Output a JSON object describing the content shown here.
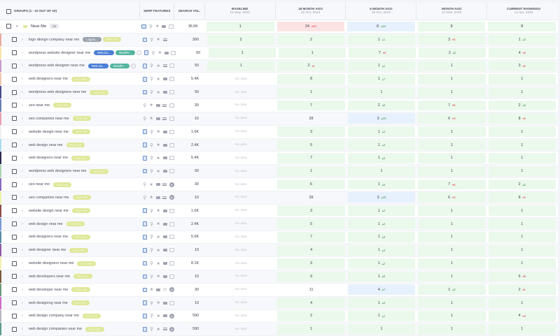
{
  "header": {
    "groups_label": "GROUPS (1 - 10 OUT OF 10)",
    "serp_label": "SERP FEATURES",
    "vol_label": "SEARCH VOL.",
    "columns": [
      {
        "label": "BASELINE",
        "date": "15 May, 2022"
      },
      {
        "label": "18 MONTH AGO",
        "date": "22 Oct, 2023"
      },
      {
        "label": "6 MONTH AGO",
        "date": "16 Oct, 2024"
      },
      {
        "label": "MONTH AGO",
        "date": "15 Mar, 2025"
      },
      {
        "label": "CURRENT RANKINGS",
        "date": "14 Apr, 2025"
      }
    ]
  },
  "group": {
    "name": "Near Me",
    "count": "46",
    "volume": "36.5K",
    "ranks": [
      {
        "v": "1",
        "c": "green"
      },
      {
        "v": "24",
        "d": "23",
        "dir": "dn",
        "c": "red"
      },
      {
        "v": "8",
        "d": "16",
        "dir": "up",
        "c": "blue"
      },
      {
        "v": "8",
        "c": "green"
      },
      {
        "v": "8",
        "c": "green"
      }
    ]
  },
  "rows": [
    {
      "kw": "logo design company near me",
      "bar": "#e8a9a0",
      "tags": [
        "Logos/...",
        "Near Me"
      ],
      "more": false,
      "serp": [
        "img",
        "pin",
        "star",
        "list"
      ],
      "vol": "390",
      "ranks": [
        {
          "v": "2",
          "c": "green"
        },
        {
          "v": "2",
          "c": "green"
        },
        {
          "v": "1",
          "d": "1",
          "dir": "up",
          "c": "green"
        },
        {
          "v": "3",
          "d": "2",
          "dir": "dn",
          "c": "green"
        },
        {
          "v": "1",
          "d": "2",
          "dir": "up",
          "c": "green"
        }
      ]
    },
    {
      "kw": "wordpress website designer near me",
      "bar": "#f5e6a8",
      "tags": [
        "Web De...",
        "WordPr..."
      ],
      "more": true,
      "serp": [
        "img",
        "pin",
        "star",
        "video",
        "dots"
      ],
      "vol": "50",
      "ranks": [
        {
          "v": "1",
          "c": "green"
        },
        {
          "v": "1",
          "c": "green"
        },
        {
          "v": "7",
          "d": "6",
          "dir": "dn",
          "c": "green"
        },
        {
          "v": "2",
          "d": "5",
          "dir": "up",
          "c": "green"
        },
        {
          "v": "4",
          "d": "2",
          "dir": "dn",
          "c": "green"
        }
      ]
    },
    {
      "kw": "wordpress web designer near me",
      "bar": "#c79bc7",
      "tags": [
        "Web De...",
        "WordPr..."
      ],
      "more": true,
      "serp": [
        "img",
        "pin",
        "star",
        "list",
        "dots"
      ],
      "vol": "50",
      "ranks": [
        {
          "v": "1",
          "c": "green"
        },
        {
          "v": "2",
          "d": "1",
          "dir": "dn",
          "c": "green"
        },
        {
          "v": "1",
          "d": "1",
          "dir": "up",
          "c": "green"
        },
        {
          "v": "1",
          "c": "green"
        },
        {
          "v": "3",
          "d": "2",
          "dir": "dn",
          "c": "green"
        }
      ]
    },
    {
      "kw": "web designers near me",
      "bar": "#f2c7b0",
      "tags": [
        "Near Me"
      ],
      "more": false,
      "serp": [
        "img",
        "pin",
        "star",
        "video",
        "dots"
      ],
      "vol": "5.4K",
      "ranks": [
        {
          "v": "No data",
          "c": "none"
        },
        {
          "v": "8",
          "c": "green"
        },
        {
          "v": "1",
          "d": "7",
          "dir": "up",
          "c": "green"
        },
        {
          "v": "1",
          "c": "green"
        },
        {
          "v": "1",
          "c": "green"
        }
      ]
    },
    {
      "kw": "wordpress web designers near me",
      "bar": "#4b4a8c",
      "tags": [
        "Near Me"
      ],
      "more": false,
      "serp": [
        "img",
        "pin",
        "star",
        "video",
        "dots"
      ],
      "vol": "50",
      "ranks": [
        {
          "v": "No data",
          "c": "none"
        },
        {
          "v": "1",
          "c": "green"
        },
        {
          "v": "1",
          "c": "green"
        },
        {
          "v": "1",
          "c": "green"
        },
        {
          "v": "1",
          "c": "green"
        }
      ]
    },
    {
      "kw": "seo near me",
      "bar": "#6a7fb5",
      "tags": [
        "Near Me"
      ],
      "more": false,
      "serp": [
        "pin",
        "star",
        "video",
        "list",
        "dots"
      ],
      "vol": "30",
      "ranks": [
        {
          "v": "No data",
          "c": "none"
        },
        {
          "v": "7",
          "c": "green"
        },
        {
          "v": "2",
          "d": "5",
          "dir": "up",
          "c": "green"
        },
        {
          "v": "7",
          "d": "5",
          "dir": "dn",
          "c": "green"
        },
        {
          "v": "2",
          "d": "5",
          "dir": "up",
          "c": "green"
        }
      ]
    },
    {
      "kw": "seo companies near me",
      "bar": "#e8a0b4",
      "tags": [
        "Near Me"
      ],
      "more": false,
      "serp": [
        "pin",
        "star",
        "video",
        "list",
        "dots"
      ],
      "vol": "10",
      "ranks": [
        {
          "v": "No data",
          "c": "none"
        },
        {
          "v": "28",
          "c": "plain"
        },
        {
          "v": "3",
          "d": "25",
          "dir": "up",
          "c": "blue"
        },
        {
          "v": "6",
          "d": "3",
          "dir": "dn",
          "c": "green"
        },
        {
          "v": "8",
          "d": "2",
          "dir": "dn",
          "c": "green"
        }
      ]
    },
    {
      "kw": "website design near me",
      "bar": "#f0f0f0",
      "tags": [
        "Near Me"
      ],
      "more": false,
      "serp": [
        "img",
        "pin",
        "star",
        "video",
        "dots"
      ],
      "vol": "1.6K",
      "ranks": [
        {
          "v": "No data",
          "c": "none"
        },
        {
          "v": "3",
          "c": "green"
        },
        {
          "v": "1",
          "d": "2",
          "dir": "up",
          "c": "green"
        },
        {
          "v": "1",
          "c": "green"
        },
        {
          "v": "1",
          "c": "green"
        }
      ]
    },
    {
      "kw": "web design near me",
      "bar": "#a9dcef",
      "tags": [
        "Near Me"
      ],
      "more": false,
      "serp": [
        "img",
        "pin",
        "star",
        "video",
        "dots"
      ],
      "vol": "2.4K",
      "ranks": [
        {
          "v": "No data",
          "c": "none"
        },
        {
          "v": "5",
          "c": "green"
        },
        {
          "v": "1",
          "d": "4",
          "dir": "up",
          "c": "green"
        },
        {
          "v": "1",
          "c": "green"
        },
        {
          "v": "1",
          "c": "green"
        }
      ]
    },
    {
      "kw": "web designers near me",
      "bar": "#2e2c4e",
      "tags": [
        "Near Me"
      ],
      "more": false,
      "serp": [
        "img",
        "pin",
        "star",
        "video",
        "dots"
      ],
      "vol": "5.4K",
      "ranks": [
        {
          "v": "No data",
          "c": "none"
        },
        {
          "v": "7",
          "c": "green"
        },
        {
          "v": "1",
          "d": "6",
          "dir": "up",
          "c": "green"
        },
        {
          "v": "1",
          "c": "green"
        },
        {
          "v": "1",
          "c": "green"
        }
      ]
    },
    {
      "kw": "wordpress web designers near me",
      "bar": "#a8d4b0",
      "tags": [
        "Near Me"
      ],
      "more": false,
      "serp": [
        "img",
        "pin",
        "star",
        "video",
        "dots"
      ],
      "vol": "50",
      "ranks": [
        {
          "v": "No data",
          "c": "none"
        },
        {
          "v": "1",
          "c": "green"
        },
        {
          "v": "1",
          "c": "green"
        },
        {
          "v": "1",
          "c": "green"
        },
        {
          "v": "1",
          "c": "green"
        }
      ]
    },
    {
      "kw": "seo near me",
      "bar": "#8a6ac0",
      "tags": [
        "Near Me"
      ],
      "more": false,
      "serp": [
        "pin",
        "star",
        "video",
        "list",
        "circ"
      ],
      "vol": "30",
      "ranks": [
        {
          "v": "No data",
          "c": "none"
        },
        {
          "v": "6",
          "c": "green"
        },
        {
          "v": "1",
          "d": "5",
          "dir": "up",
          "c": "green"
        },
        {
          "v": "7",
          "d": "6",
          "dir": "dn",
          "c": "green"
        },
        {
          "v": "2",
          "d": "5",
          "dir": "up",
          "c": "green"
        }
      ]
    },
    {
      "kw": "seo companies near me",
      "bar": "#eaf2a8",
      "tags": [
        "Near Me"
      ],
      "more": false,
      "serp": [
        "pin",
        "star",
        "video",
        "list",
        "circ"
      ],
      "vol": "10",
      "ranks": [
        {
          "v": "No data",
          "c": "none"
        },
        {
          "v": "28",
          "c": "plain"
        },
        {
          "v": "3",
          "d": "25",
          "dir": "up",
          "c": "blue"
        },
        {
          "v": "6",
          "d": "3",
          "dir": "dn",
          "c": "green"
        },
        {
          "v": "8",
          "d": "2",
          "dir": "dn",
          "c": "green"
        }
      ]
    },
    {
      "kw": "website design near me",
      "bar": "#8a4a48",
      "tags": [
        "Near Me"
      ],
      "more": false,
      "serp": [
        "img",
        "pin",
        "star",
        "video",
        "dots"
      ],
      "vol": "1.6K",
      "ranks": [
        {
          "v": "No data",
          "c": "none"
        },
        {
          "v": "3",
          "c": "green"
        },
        {
          "v": "1",
          "d": "2",
          "dir": "up",
          "c": "green"
        },
        {
          "v": "1",
          "c": "green"
        },
        {
          "v": "1",
          "c": "green"
        }
      ]
    },
    {
      "kw": "web design near me",
      "bar": "#7a9ad6",
      "tags": [
        "Near Me"
      ],
      "more": false,
      "serp": [
        "img",
        "pin",
        "star",
        "video",
        "dots"
      ],
      "vol": "2.4K",
      "ranks": [
        {
          "v": "No data",
          "c": "none"
        },
        {
          "v": "5",
          "c": "green"
        },
        {
          "v": "1",
          "d": "4",
          "dir": "up",
          "c": "green"
        },
        {
          "v": "1",
          "c": "green"
        },
        {
          "v": "1",
          "c": "green"
        }
      ]
    },
    {
      "kw": "web designers near me",
      "bar": "#5a8aa8",
      "tags": [
        "Near Me"
      ],
      "more": false,
      "serp": [
        "img",
        "pin",
        "star",
        "video",
        "dots"
      ],
      "vol": "5.6K",
      "ranks": [
        {
          "v": "No data",
          "c": "none"
        },
        {
          "v": "7",
          "c": "green"
        },
        {
          "v": "1",
          "d": "6",
          "dir": "up",
          "c": "green"
        },
        {
          "v": "1",
          "c": "green"
        },
        {
          "v": "1",
          "c": "green"
        }
      ]
    },
    {
      "kw": "web designer near me",
      "bar": "#8e5aa8",
      "tags": [
        "Near Me"
      ],
      "more": false,
      "serp": [
        "img",
        "pin",
        "star",
        "video",
        "dots"
      ],
      "vol": "10",
      "ranks": [
        {
          "v": "No data",
          "c": "none"
        },
        {
          "v": "4",
          "c": "green"
        },
        {
          "v": "1",
          "d": "3",
          "dir": "up",
          "c": "green"
        },
        {
          "v": "1",
          "c": "green"
        },
        {
          "v": "1",
          "c": "green"
        }
      ]
    },
    {
      "kw": "website designers near me",
      "bar": "#f5efb0",
      "tags": [
        "Near Me"
      ],
      "more": false,
      "serp": [
        "img",
        "pin",
        "star",
        "video",
        "dots"
      ],
      "vol": "8.1K",
      "ranks": [
        {
          "v": "No data",
          "c": "none"
        },
        {
          "v": "3",
          "c": "green"
        },
        {
          "v": "1",
          "d": "2",
          "dir": "up",
          "c": "green"
        },
        {
          "v": "1",
          "c": "green"
        },
        {
          "v": "1",
          "c": "green"
        }
      ]
    },
    {
      "kw": "web developers near me",
      "bar": "#7a5a3a",
      "tags": [
        "Near Me"
      ],
      "more": false,
      "serp": [
        "img",
        "pin",
        "star",
        "video",
        "dots"
      ],
      "vol": "10",
      "ranks": [
        {
          "v": "No data",
          "c": "none"
        },
        {
          "v": "9",
          "c": "green"
        },
        {
          "v": "1",
          "d": "8",
          "dir": "up",
          "c": "green"
        },
        {
          "v": "1",
          "c": "green"
        },
        {
          "v": "6",
          "d": "5",
          "dir": "dn",
          "c": "green"
        }
      ]
    },
    {
      "kw": "web developer near me",
      "bar": "#6a9a7a",
      "tags": [
        "Near Me"
      ],
      "more": false,
      "serp": [
        "img",
        "star",
        "video",
        "clock",
        "circ"
      ],
      "vol": "30",
      "ranks": [
        {
          "v": "No data",
          "c": "none"
        },
        {
          "v": "11",
          "c": "plain"
        },
        {
          "v": "4",
          "d": "7",
          "dir": "up",
          "c": "blue"
        },
        {
          "v": "1",
          "d": "3",
          "dir": "up",
          "c": "green"
        },
        {
          "v": "2",
          "d": "1",
          "dir": "dn",
          "c": "green"
        }
      ]
    },
    {
      "kw": "web designing near me",
      "bar": "#d06ac8",
      "tags": [
        "Near Me"
      ],
      "more": false,
      "serp": [
        "img",
        "pin",
        "star",
        "video",
        "dots"
      ],
      "vol": "10",
      "ranks": [
        {
          "v": "No data",
          "c": "none"
        },
        {
          "v": "4",
          "c": "green"
        },
        {
          "v": "1",
          "d": "3",
          "dir": "up",
          "c": "green"
        },
        {
          "v": "1",
          "c": "green"
        },
        {
          "v": "1",
          "c": "green"
        }
      ]
    },
    {
      "kw": "web design company near me",
      "bar": "#b8b8c0",
      "tags": [
        "Near Me"
      ],
      "more": false,
      "serp": [
        "img",
        "pin",
        "star",
        "video",
        "circ"
      ],
      "vol": "590",
      "ranks": [
        {
          "v": "No data",
          "c": "none"
        },
        {
          "v": "2",
          "c": "green"
        },
        {
          "v": "1",
          "d": "1",
          "dir": "up",
          "c": "green"
        },
        {
          "v": "1",
          "c": "green"
        },
        {
          "v": "4",
          "d": "3",
          "dir": "dn",
          "c": "green"
        }
      ]
    },
    {
      "kw": "web design companies near me",
      "bar": "#5a9a8a",
      "tags": [
        "Near Me"
      ],
      "more": false,
      "serp": [
        "img",
        "pin",
        "star",
        "list",
        "circ"
      ],
      "vol": "590",
      "ranks": [
        {
          "v": "No data",
          "c": "none"
        },
        {
          "v": "1",
          "c": "green"
        },
        {
          "v": "1",
          "c": "green"
        },
        {
          "v": "1",
          "c": "green"
        },
        {
          "v": "1",
          "c": "green"
        }
      ]
    }
  ],
  "icons": {
    "img": "image-icon",
    "pin": "location-pin-icon",
    "star": "star-icon",
    "video": "video-icon",
    "list": "list-icon",
    "dots": "more-features-icon",
    "circ": "circle-feature-icon",
    "clock": "clock-icon"
  },
  "colors": {
    "green_cell": "#ebf8ec",
    "red_cell": "#fbe3e4",
    "blue_cell": "#e6f1fd",
    "up": "#4f9a5a",
    "down": "#e0484e",
    "near_me_tag": "#dfe89a"
  }
}
